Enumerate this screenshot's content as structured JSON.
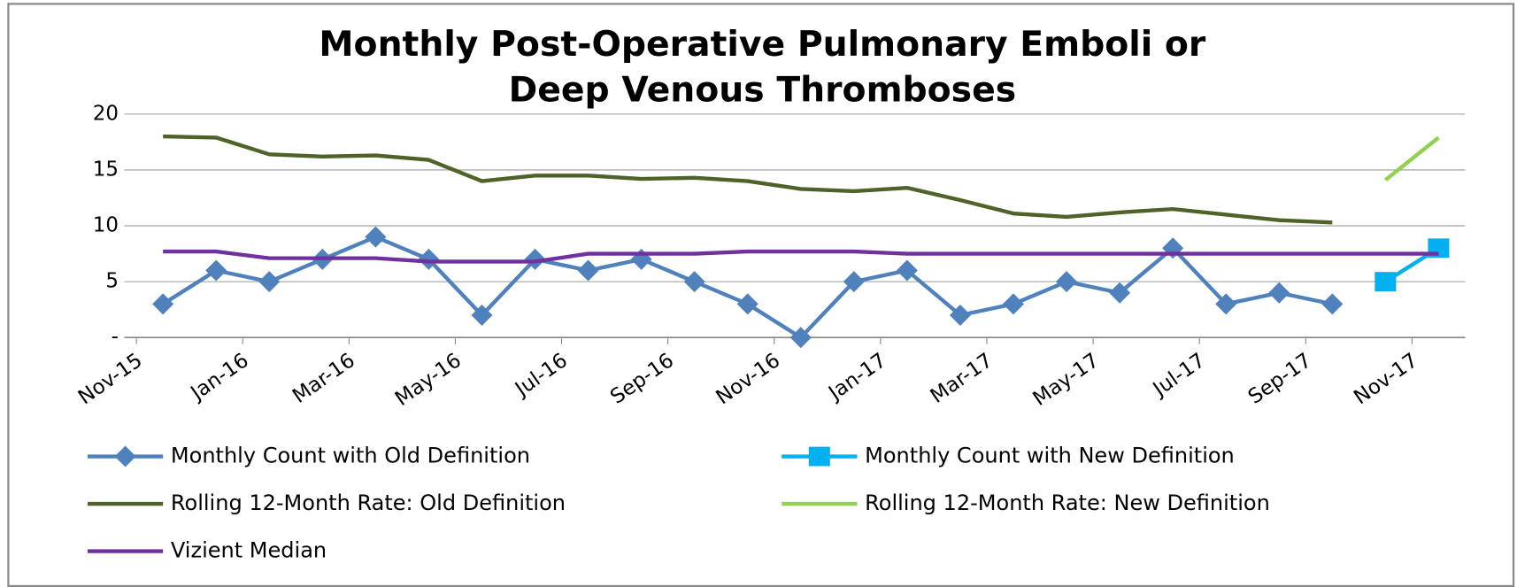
{
  "chart_data": {
    "type": "line",
    "title": [
      "Monthly Post-Operative Pulmonary Emboli or",
      "Deep Venous Thromboses"
    ],
    "categories": [
      "Nov-15",
      null,
      "Jan-16",
      null,
      "Mar-16",
      null,
      "May-16",
      null,
      "Jul-16",
      null,
      "Sep-16",
      null,
      "Nov-16",
      null,
      "Jan-17",
      null,
      "Mar-17",
      null,
      "May-17",
      null,
      "Jul-17",
      null,
      "Sep-17",
      null,
      "Nov-17"
    ],
    "series": [
      {
        "name": "Monthly Count with Old Definition",
        "color": "#4f81bd",
        "marker": "diamond",
        "values": [
          3,
          6,
          5,
          7,
          9,
          7,
          2,
          7,
          6,
          7,
          5,
          3,
          0,
          5,
          6,
          2,
          3,
          5,
          4,
          8,
          3,
          4,
          3,
          null,
          null
        ]
      },
      {
        "name": "Monthly Count with New Definition",
        "color": "#00b0f0",
        "marker": "square",
        "values": [
          null,
          null,
          null,
          null,
          null,
          null,
          null,
          null,
          null,
          null,
          null,
          null,
          null,
          null,
          null,
          null,
          null,
          null,
          null,
          null,
          null,
          null,
          null,
          5,
          8
        ]
      },
      {
        "name": "Rolling 12-Month Rate:  Old Definition",
        "color": "#4f6228",
        "values": [
          18,
          17.9,
          16.4,
          16.2,
          16.3,
          15.9,
          14.0,
          14.5,
          14.5,
          14.2,
          14.3,
          14.0,
          13.3,
          13.1,
          13.4,
          12.3,
          11.1,
          10.8,
          11.2,
          11.5,
          11.0,
          10.5,
          10.3,
          null,
          null
        ]
      },
      {
        "name": "Rolling 12-Month Rate:  New Definition",
        "color": "#92d050",
        "values": [
          null,
          null,
          null,
          null,
          null,
          null,
          null,
          null,
          null,
          null,
          null,
          null,
          null,
          null,
          null,
          null,
          null,
          null,
          null,
          null,
          null,
          null,
          null,
          14.1,
          17.9
        ]
      },
      {
        "name": "Vizient Median",
        "color": "#7030a0",
        "values": [
          7.7,
          7.7,
          7.1,
          7.1,
          7.1,
          6.8,
          6.8,
          6.8,
          7.5,
          7.5,
          7.5,
          7.7,
          7.7,
          7.7,
          7.5,
          7.5,
          7.5,
          7.5,
          7.5,
          7.5,
          7.5,
          7.5,
          7.5,
          7.5,
          7.5
        ]
      }
    ],
    "ylim": [
      0,
      20
    ],
    "yticks": [
      {
        "value": 0,
        "label": "-"
      },
      5,
      10,
      15,
      20
    ],
    "grid": true
  }
}
